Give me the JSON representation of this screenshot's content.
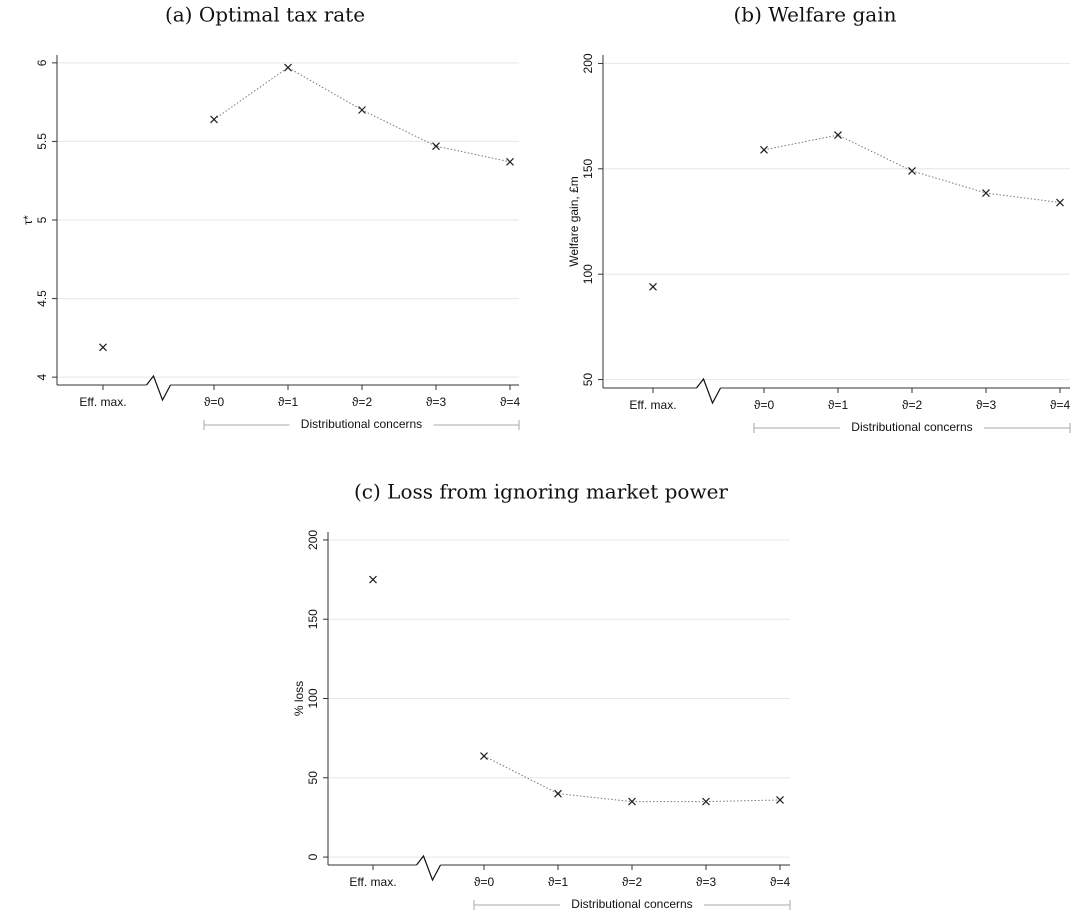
{
  "chart_data": [
    {
      "type": "line",
      "title": "(a) Optimal tax rate",
      "y_label": "τ*",
      "categories": [
        "Eff. max.",
        null,
        "ϑ=0",
        "ϑ=1",
        "ϑ=2",
        "ϑ=3",
        "ϑ=4"
      ],
      "values": [
        4.19,
        null,
        5.64,
        5.97,
        5.7,
        5.47,
        5.37
      ],
      "ylim": [
        3.95,
        6.05
      ],
      "yticks": [
        4,
        4.5,
        5,
        5.5,
        6
      ],
      "grid": true,
      "color": "#222222",
      "line_style": "dotted",
      "bracket_label": "Distributional concerns"
    },
    {
      "type": "line",
      "title": "(b) Welfare gain",
      "y_label": "Welfare gain, £m",
      "categories": [
        "Eff. max.",
        null,
        "ϑ=0",
        "ϑ=1",
        "ϑ=2",
        "ϑ=3",
        "ϑ=4"
      ],
      "values": [
        94,
        null,
        159,
        166,
        149,
        138.5,
        134
      ],
      "ylim": [
        46,
        204
      ],
      "yticks": [
        50,
        100,
        150,
        200
      ],
      "grid": true,
      "color": "#222222",
      "line_style": "dotted",
      "bracket_label": "Distributional concerns"
    },
    {
      "type": "line",
      "title": "(c) Loss from ignoring market power",
      "y_label": "% loss",
      "categories": [
        "Eff. max.",
        null,
        "ϑ=0",
        "ϑ=1",
        "ϑ=2",
        "ϑ=3",
        "ϑ=4"
      ],
      "values": [
        175,
        null,
        63.7,
        40,
        35,
        35,
        36
      ],
      "ylim": [
        -5,
        205
      ],
      "yticks": [
        0,
        50,
        100,
        150,
        200
      ],
      "grid": true,
      "color": "#222222",
      "line_style": "dotted",
      "bracket_label": "Distributional concerns"
    }
  ]
}
